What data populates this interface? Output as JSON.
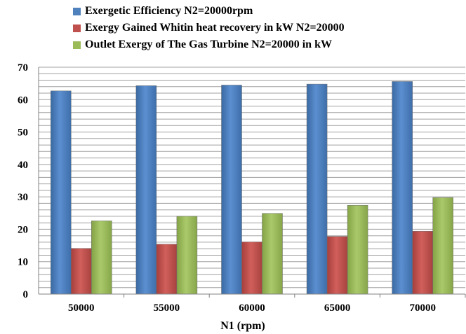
{
  "chart_data": {
    "type": "bar",
    "title": "",
    "xlabel": "N1 (rpm)",
    "ylabel": "",
    "ylim": [
      0,
      70
    ],
    "yticks": [
      0,
      10,
      20,
      30,
      40,
      50,
      60,
      70
    ],
    "grid": true,
    "legend_position": "top",
    "categories": [
      "50000",
      "55000",
      "60000",
      "65000",
      "70000"
    ],
    "series": [
      {
        "name": "Exergetic Efficiency N2=20000rpm",
        "color": "#4f81bd",
        "values": [
          62.7,
          64.3,
          64.5,
          64.8,
          65.6
        ]
      },
      {
        "name": "Exergy Gained Whitin heat recovery in kW N2=20000",
        "color": "#c0504d",
        "values": [
          14.1,
          15.4,
          16.1,
          17.8,
          19.4
        ]
      },
      {
        "name": "Outlet Exergy of The Gas Turbine N2=20000 in kW",
        "color": "#9bbb59",
        "values": [
          22.6,
          24.0,
          24.9,
          27.4,
          29.8
        ]
      }
    ]
  }
}
